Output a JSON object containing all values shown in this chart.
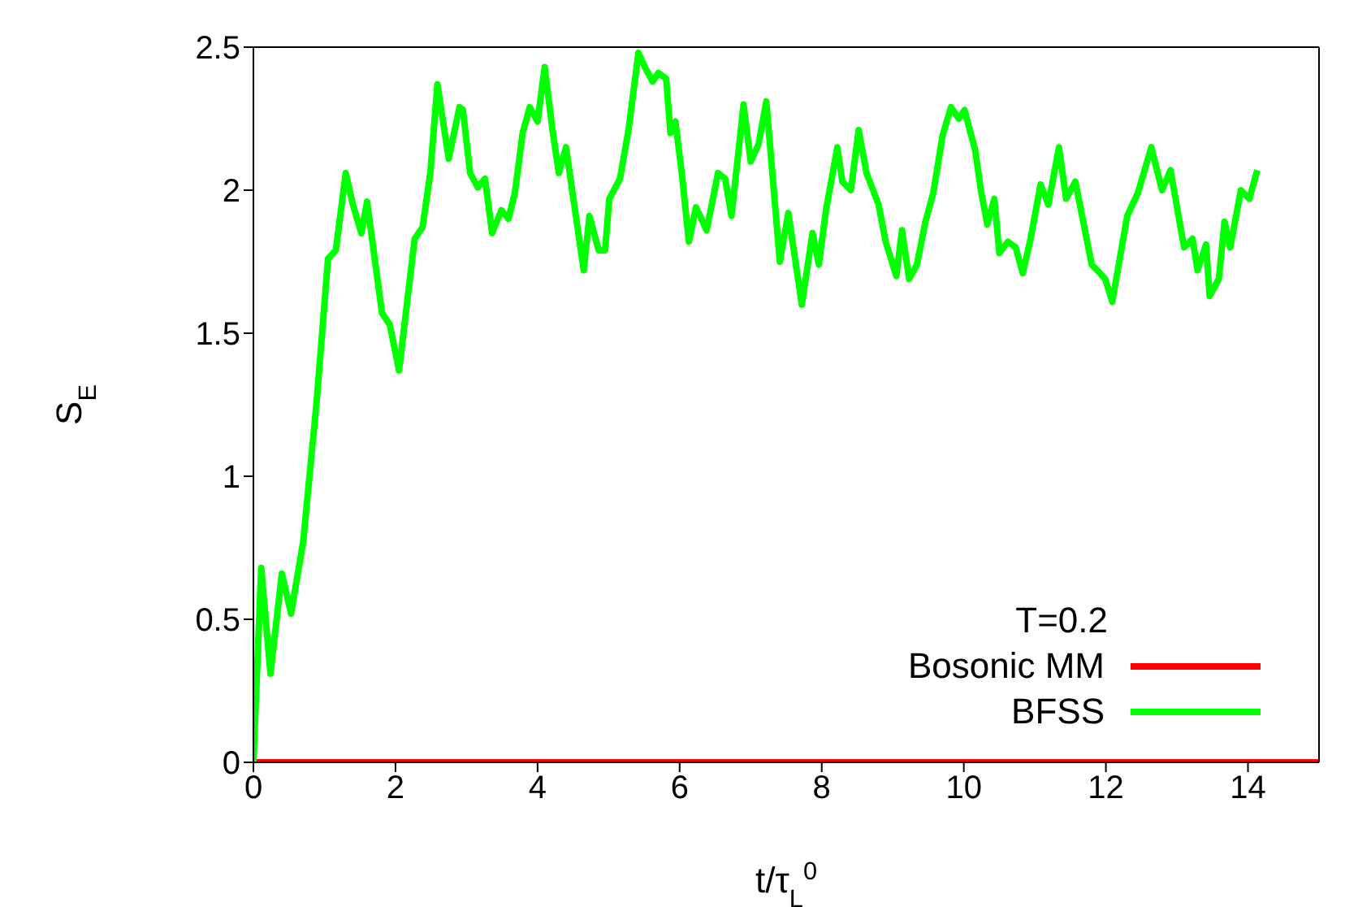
{
  "chart_data": {
    "type": "line",
    "xlabel": "t/τ$_{L}$$^{0}$",
    "ylabel": "S$_{E}$",
    "legend_title": "T=0.2",
    "legend": "bottom right",
    "grid": false,
    "marker": "none",
    "line_style": "solid",
    "xlim": [
      0,
      15
    ],
    "xticks": [
      0,
      2,
      4,
      6,
      8,
      10,
      12,
      14
    ],
    "ylim": [
      0,
      2.5
    ],
    "yticks": [
      0,
      0.5,
      1,
      1.5,
      2,
      2.5
    ],
    "series": [
      {
        "name": "Bosonic MM",
        "color": "#ff0000",
        "x": [
          0,
          15
        ],
        "values": [
          0,
          0
        ]
      },
      {
        "name": "BFSS",
        "color": "#00ff00",
        "x": [
          0,
          0.11,
          0.24,
          0.4,
          0.53,
          0.7,
          0.89,
          1.05,
          1.16,
          1.3,
          1.4,
          1.52,
          1.6,
          1.81,
          1.92,
          2.05,
          2.27,
          2.38,
          2.49,
          2.59,
          2.75,
          2.9,
          2.95,
          3.05,
          3.16,
          3.26,
          3.36,
          3.49,
          3.59,
          3.68,
          3.79,
          3.89,
          4.0,
          4.1,
          4.21,
          4.3,
          4.4,
          4.51,
          4.65,
          4.73,
          4.86,
          4.95,
          5.01,
          5.16,
          5.28,
          5.42,
          5.51,
          5.62,
          5.7,
          5.81,
          5.87,
          5.94,
          6.03,
          6.13,
          6.23,
          6.38,
          6.54,
          6.64,
          6.73,
          6.9,
          7.0,
          7.11,
          7.22,
          7.41,
          7.53,
          7.72,
          7.87,
          7.96,
          8.06,
          8.22,
          8.29,
          8.41,
          8.52,
          8.63,
          8.8,
          8.9,
          9.05,
          9.13,
          9.23,
          9.34,
          9.46,
          9.57,
          9.7,
          9.82,
          9.93,
          10.01,
          10.16,
          10.24,
          10.33,
          10.43,
          10.5,
          10.62,
          10.73,
          10.83,
          10.94,
          11.08,
          11.19,
          11.34,
          11.44,
          11.57,
          11.8,
          11.99,
          12.09,
          12.3,
          12.45,
          12.64,
          12.79,
          12.91,
          13.1,
          13.22,
          13.29,
          13.41,
          13.46,
          13.59,
          13.67,
          13.75,
          13.9,
          14.02,
          14.13
        ],
        "values": [
          0,
          0.68,
          0.31,
          0.66,
          0.52,
          0.77,
          1.26,
          1.76,
          1.79,
          2.06,
          1.95,
          1.85,
          1.96,
          1.57,
          1.53,
          1.37,
          1.83,
          1.87,
          2.06,
          2.37,
          2.11,
          2.29,
          2.28,
          2.06,
          2.01,
          2.04,
          1.85,
          1.93,
          1.9,
          1.99,
          2.2,
          2.29,
          2.24,
          2.43,
          2.21,
          2.06,
          2.15,
          1.96,
          1.72,
          1.91,
          1.79,
          1.79,
          1.97,
          2.04,
          2.21,
          2.48,
          2.43,
          2.38,
          2.41,
          2.39,
          2.2,
          2.24,
          2.06,
          1.82,
          1.94,
          1.86,
          2.06,
          2.04,
          1.91,
          2.3,
          2.1,
          2.16,
          2.31,
          1.75,
          1.92,
          1.6,
          1.85,
          1.74,
          1.93,
          2.15,
          2.03,
          2.0,
          2.21,
          2.06,
          1.95,
          1.82,
          1.7,
          1.86,
          1.69,
          1.74,
          1.89,
          1.99,
          2.19,
          2.29,
          2.25,
          2.28,
          2.14,
          2.0,
          1.88,
          1.97,
          1.78,
          1.82,
          1.8,
          1.71,
          1.83,
          2.02,
          1.95,
          2.15,
          1.97,
          2.03,
          1.74,
          1.69,
          1.61,
          1.91,
          1.99,
          2.15,
          2.0,
          2.07,
          1.8,
          1.83,
          1.72,
          1.81,
          1.63,
          1.69,
          1.89,
          1.8,
          2.0,
          1.97,
          2.07
        ]
      }
    ]
  }
}
